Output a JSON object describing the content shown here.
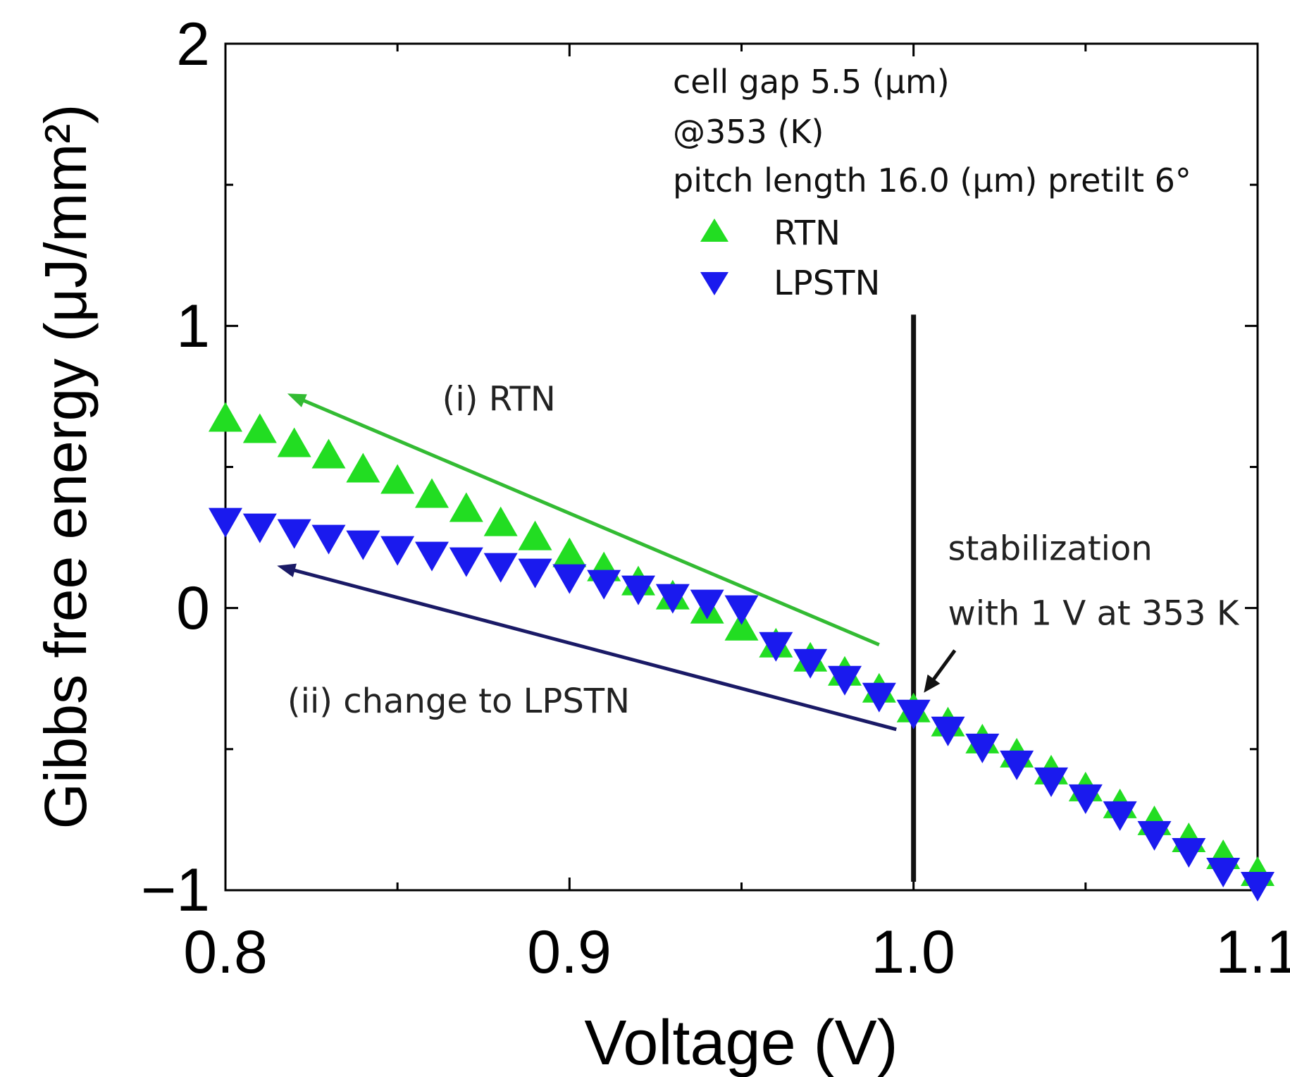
{
  "chart_data": {
    "type": "scatter",
    "xlabel": "Voltage (V)",
    "ylabel": "Gibbs free energy (μJ/mm²)",
    "xlim": [
      0.8,
      1.1
    ],
    "ylim": [
      -1,
      2
    ],
    "x_ticks": [
      "0.8",
      "0.9",
      "1.0",
      "1.1"
    ],
    "y_ticks": [
      "−1",
      "0",
      "1",
      "2"
    ],
    "info_lines": [
      "cell gap 5.5 (μm)",
      "@353 (K)",
      "pitch length 16.0 (μm) pretilt 6°"
    ],
    "series": [
      {
        "name": "RTN",
        "marker": "triangle-up",
        "color": "#22dd22",
        "x": [
          0.8,
          0.81,
          0.82,
          0.83,
          0.84,
          0.85,
          0.86,
          0.87,
          0.88,
          0.89,
          0.9,
          0.91,
          0.92,
          0.93,
          0.94,
          0.95,
          0.96,
          0.97,
          0.98,
          0.99,
          1.0,
          1.01,
          1.02,
          1.03,
          1.04,
          1.05,
          1.06,
          1.07,
          1.08,
          1.09,
          1.1
        ],
        "y": [
          0.67,
          0.63,
          0.58,
          0.54,
          0.49,
          0.45,
          0.4,
          0.35,
          0.3,
          0.25,
          0.19,
          0.14,
          0.09,
          0.04,
          -0.01,
          -0.07,
          -0.13,
          -0.18,
          -0.23,
          -0.29,
          -0.36,
          -0.41,
          -0.47,
          -0.52,
          -0.58,
          -0.64,
          -0.7,
          -0.76,
          -0.82,
          -0.88,
          -0.94
        ]
      },
      {
        "name": "LPSTN",
        "marker": "triangle-down",
        "color": "#1a1aee",
        "x": [
          0.8,
          0.81,
          0.82,
          0.83,
          0.84,
          0.85,
          0.86,
          0.87,
          0.88,
          0.89,
          0.9,
          0.91,
          0.92,
          0.93,
          0.94,
          0.95,
          0.96,
          0.97,
          0.98,
          0.99,
          1.0,
          1.01,
          1.02,
          1.03,
          1.04,
          1.05,
          1.06,
          1.07,
          1.08,
          1.09,
          1.1
        ],
        "y": [
          0.31,
          0.29,
          0.27,
          0.25,
          0.23,
          0.21,
          0.19,
          0.17,
          0.15,
          0.13,
          0.11,
          0.09,
          0.07,
          0.04,
          0.02,
          0.0,
          -0.13,
          -0.19,
          -0.25,
          -0.31,
          -0.37,
          -0.43,
          -0.49,
          -0.55,
          -0.61,
          -0.67,
          -0.73,
          -0.8,
          -0.86,
          -0.93,
          -0.98
        ]
      }
    ],
    "annotations": [
      {
        "name": "rtn-path",
        "text": "(i) RTN",
        "color": "#33bb33",
        "from": [
          0.99,
          -0.13
        ],
        "to": [
          0.818,
          0.76
        ],
        "text_at": [
          0.863,
          0.7
        ]
      },
      {
        "name": "lpstn-path",
        "text": "(ii) change to LPSTN",
        "color": "#1a1a66",
        "from": [
          0.995,
          -0.43
        ],
        "to": [
          0.815,
          0.15
        ],
        "text_at": [
          0.818,
          -0.37
        ]
      }
    ],
    "vline": {
      "x": 1.0,
      "y_from": -0.97,
      "y_to": 1.04
    },
    "stabilization": {
      "lines": [
        "stabilization",
        "with 1 V at 353 K"
      ],
      "text_at": [
        1.01,
        0.17
      ],
      "arrow_from": [
        1.012,
        -0.15
      ],
      "arrow_to": [
        1.003,
        -0.3
      ]
    }
  }
}
